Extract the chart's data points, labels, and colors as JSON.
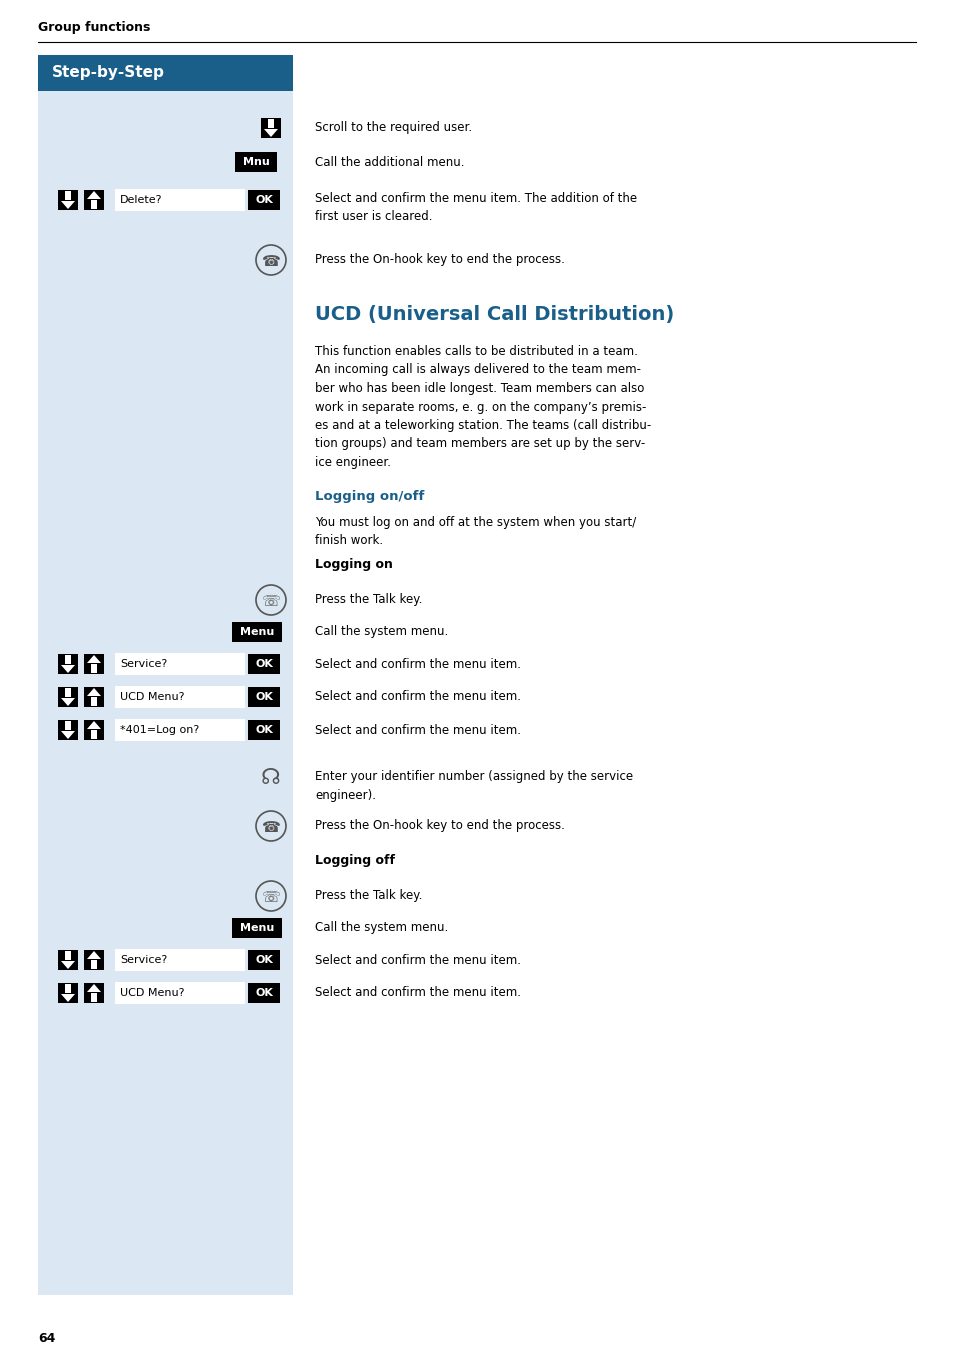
{
  "page_bg": "#ffffff",
  "left_panel_bg": "#dbe8f3",
  "header_bg": "#1a5f8a",
  "header_text": "Step-by-Step",
  "header_text_color": "#ffffff",
  "section_title": "UCD (Universal Call Distribution)",
  "section_title_color": "#1a5f8a",
  "page_header": "Group functions",
  "page_number": "64",
  "subheading_color": "#1a5f8a",
  "subheading1": "Logging on/off",
  "subheading2": "Logging on",
  "subheading3": "Logging off",
  "body_text": "This function enables calls to be distributed in a team.\nAn incoming call is always delivered to the team mem-\nber who has been idle longest. Team members can also\nwork in separate rooms, e. g. on the company’s premis-\nes and at a teleworking station. The teams (call distribu-\ntion groups) and team members are set up by the serv-\nice engineer.",
  "logging_intro": "You must log on and off at the system when you start/\nfinish work."
}
